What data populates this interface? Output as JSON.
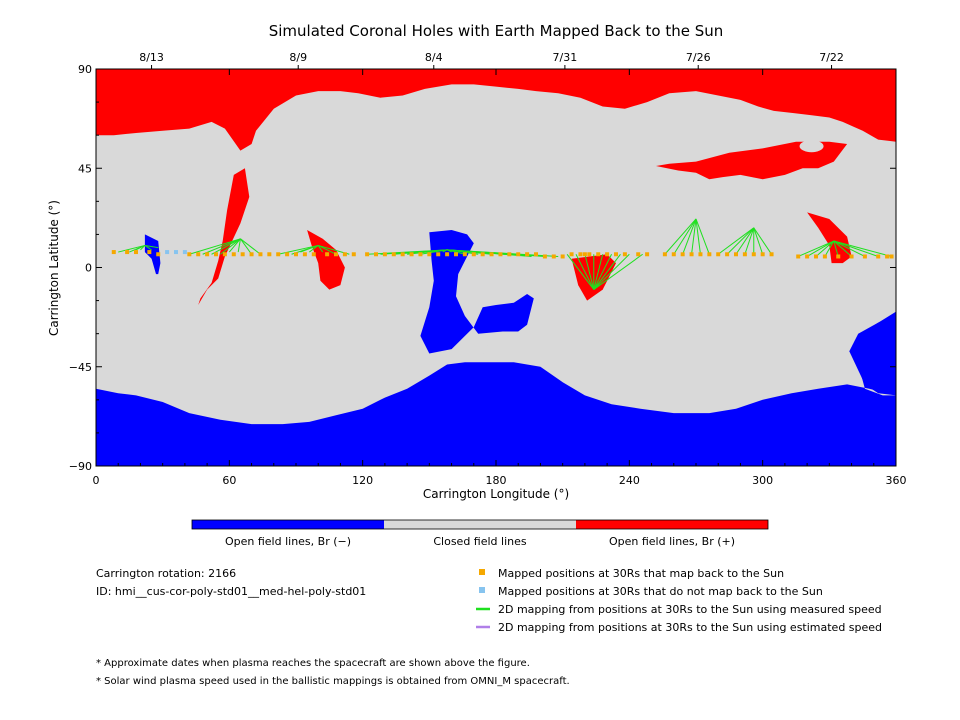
{
  "colors": {
    "open_negative": "#0000ff",
    "closed": "#d9d9d9",
    "open_positive": "#ff0000",
    "mapped_back": "#f5a800",
    "not_mapped": "#87c4ef",
    "measured_line": "#1fe01f",
    "estimated_line": "#b07fe8"
  },
  "chart_data": {
    "type": "heatmap",
    "title": "Simulated Coronal Holes with Earth Mapped Back to the Sun",
    "xlabel": "Carrington Longitude (°)",
    "ylabel": "Carrington Latitude (°)",
    "xlim": [
      0,
      360
    ],
    "ylim": [
      -90,
      90
    ],
    "x_ticks": [
      0,
      60,
      120,
      180,
      240,
      300,
      360
    ],
    "y_ticks": [
      -90,
      -45,
      0,
      45,
      90
    ],
    "top_axis_ticks": [
      {
        "label": "8/13",
        "lon": 25
      },
      {
        "label": "8/9",
        "lon": 91
      },
      {
        "label": "8/4",
        "lon": 152
      },
      {
        "label": "7/31",
        "lon": 211
      },
      {
        "label": "7/26",
        "lon": 271
      },
      {
        "label": "7/22",
        "lon": 331
      }
    ],
    "colorbar": [
      {
        "label": "Open field lines, Br (−)",
        "color": "#0000ff"
      },
      {
        "label": "Closed field lines",
        "color": "#d9d9d9"
      },
      {
        "label": "Open field lines, Br (+)",
        "color": "#ff0000"
      }
    ],
    "regions": {
      "north_positive_cap": [
        [
          0,
          90
        ],
        [
          360,
          90
        ],
        [
          360,
          57
        ],
        [
          352,
          58
        ],
        [
          345,
          62
        ],
        [
          336,
          66
        ],
        [
          330,
          68
        ],
        [
          322,
          69
        ],
        [
          314,
          70
        ],
        [
          305,
          71
        ],
        [
          298,
          73
        ],
        [
          290,
          76
        ],
        [
          280,
          78
        ],
        [
          270,
          80
        ],
        [
          258,
          79
        ],
        [
          248,
          75
        ],
        [
          238,
          72
        ],
        [
          228,
          73
        ],
        [
          218,
          77
        ],
        [
          208,
          79
        ],
        [
          198,
          80
        ],
        [
          190,
          81
        ],
        [
          180,
          82
        ],
        [
          170,
          83
        ],
        [
          160,
          83
        ],
        [
          148,
          81
        ],
        [
          138,
          78
        ],
        [
          128,
          77
        ],
        [
          118,
          79
        ],
        [
          110,
          80
        ],
        [
          100,
          80
        ],
        [
          90,
          78
        ],
        [
          80,
          72
        ],
        [
          72,
          62
        ],
        [
          70,
          56
        ],
        [
          65,
          53
        ],
        [
          58,
          63
        ],
        [
          52,
          66
        ],
        [
          42,
          63
        ],
        [
          30,
          62
        ],
        [
          18,
          61
        ],
        [
          8,
          60
        ],
        [
          0,
          60
        ]
      ],
      "red_tongue_60": [
        [
          62,
          42
        ],
        [
          67,
          45
        ],
        [
          69,
          32
        ],
        [
          65,
          20
        ],
        [
          58,
          5
        ],
        [
          55,
          -5
        ],
        [
          50,
          -10
        ],
        [
          46,
          -17
        ],
        [
          47,
          -14
        ],
        [
          52,
          -7
        ],
        [
          55,
          3
        ],
        [
          57,
          12
        ],
        [
          59,
          26
        ]
      ],
      "red_ne_lobe": [
        [
          252,
          46
        ],
        [
          262,
          44
        ],
        [
          270,
          43
        ],
        [
          276,
          40
        ],
        [
          282,
          41
        ],
        [
          290,
          42
        ],
        [
          300,
          40
        ],
        [
          310,
          42
        ],
        [
          318,
          45
        ],
        [
          325,
          45
        ],
        [
          332,
          48
        ],
        [
          338,
          56
        ],
        [
          330,
          57
        ],
        [
          315,
          57
        ],
        [
          300,
          54
        ],
        [
          285,
          52
        ],
        [
          270,
          48
        ],
        [
          258,
          47
        ]
      ],
      "red_blob_100": [
        [
          95,
          17
        ],
        [
          102,
          13
        ],
        [
          108,
          8
        ],
        [
          112,
          0
        ],
        [
          110,
          -8
        ],
        [
          105,
          -10
        ],
        [
          101,
          -6
        ],
        [
          100,
          2
        ],
        [
          97,
          10
        ]
      ],
      "red_blob_225": [
        [
          214,
          4
        ],
        [
          222,
          5
        ],
        [
          230,
          6
        ],
        [
          234,
          2
        ],
        [
          228,
          -10
        ],
        [
          221,
          -15
        ],
        [
          217,
          -8
        ]
      ],
      "red_blob_330": [
        [
          320,
          25
        ],
        [
          330,
          22
        ],
        [
          338,
          14
        ],
        [
          340,
          5
        ],
        [
          336,
          2
        ],
        [
          331,
          2
        ],
        [
          330,
          10
        ],
        [
          325,
          18
        ]
      ],
      "blue_small_25": [
        [
          22,
          15
        ],
        [
          28,
          12
        ],
        [
          29,
          2
        ],
        [
          28,
          -3
        ],
        [
          27,
          -3
        ],
        [
          25,
          4
        ],
        [
          22,
          7
        ]
      ],
      "blue_center_155": [
        [
          150,
          16
        ],
        [
          160,
          17
        ],
        [
          167,
          15
        ],
        [
          170,
          11
        ],
        [
          166,
          3
        ],
        [
          163,
          -3
        ],
        [
          162,
          -13
        ],
        [
          166,
          -22
        ],
        [
          172,
          -30
        ],
        [
          183,
          -29
        ],
        [
          190,
          -29
        ],
        [
          194,
          -26
        ],
        [
          197,
          -14
        ],
        [
          194,
          -12
        ],
        [
          188,
          -16
        ],
        [
          180,
          -17
        ],
        [
          174,
          -18
        ],
        [
          170,
          -27
        ],
        [
          160,
          -37
        ],
        [
          150,
          -39
        ],
        [
          146,
          -31
        ],
        [
          150,
          -18
        ],
        [
          152,
          -6
        ],
        [
          151,
          3
        ]
      ],
      "south_negative_cap": [
        [
          0,
          -90
        ],
        [
          360,
          -90
        ],
        [
          360,
          -58
        ],
        [
          354,
          -58
        ],
        [
          346,
          -55
        ],
        [
          342,
          -40
        ],
        [
          344,
          -30
        ],
        [
          360,
          -20
        ],
        [
          360,
          -90
        ],
        [
          360,
          -58
        ],
        [
          348,
          -55
        ],
        [
          338,
          -53
        ],
        [
          325,
          -55
        ],
        [
          313,
          -57
        ],
        [
          300,
          -60
        ],
        [
          288,
          -64
        ],
        [
          276,
          -66
        ],
        [
          260,
          -66
        ],
        [
          245,
          -64
        ],
        [
          232,
          -62
        ],
        [
          220,
          -58
        ],
        [
          210,
          -52
        ],
        [
          200,
          -45
        ],
        [
          188,
          -43
        ],
        [
          176,
          -43
        ],
        [
          166,
          -43
        ],
        [
          158,
          -44
        ],
        [
          150,
          -49
        ],
        [
          140,
          -55
        ],
        [
          130,
          -59
        ],
        [
          120,
          -64
        ],
        [
          108,
          -67
        ],
        [
          96,
          -70
        ],
        [
          84,
          -71
        ],
        [
          70,
          -71
        ],
        [
          56,
          -69
        ],
        [
          42,
          -66
        ],
        [
          30,
          -61
        ],
        [
          18,
          -58
        ],
        [
          10,
          -57
        ],
        [
          0,
          -55
        ]
      ],
      "south_tail_350": [
        [
          339,
          -38
        ],
        [
          343,
          -30
        ],
        [
          352,
          -25
        ],
        [
          360,
          -21
        ],
        [
          360,
          -58
        ],
        [
          352,
          -57
        ],
        [
          346,
          -53
        ]
      ]
    },
    "fan_lines": [
      {
        "focus": [
          22,
          10
        ],
        "from": [
          [
            10,
            7
          ],
          [
            15,
            7
          ],
          [
            18,
            8
          ],
          [
            20,
            8
          ],
          [
            25,
            8
          ],
          [
            28,
            9
          ]
        ]
      },
      {
        "focus": [
          65,
          13
        ],
        "from": [
          [
            42,
            6
          ],
          [
            48,
            6
          ],
          [
            52,
            6
          ],
          [
            56,
            6
          ],
          [
            60,
            7
          ],
          [
            64,
            7
          ],
          [
            70,
            6
          ],
          [
            74,
            6
          ]
        ]
      },
      {
        "focus": [
          100,
          10
        ],
        "from": [
          [
            82,
            6
          ],
          [
            88,
            6
          ],
          [
            92,
            7
          ],
          [
            96,
            7
          ],
          [
            102,
            7
          ],
          [
            108,
            6
          ],
          [
            114,
            6
          ]
        ]
      },
      {
        "focus": [
          158,
          8
        ],
        "from": [
          [
            122,
            6
          ],
          [
            128,
            6
          ],
          [
            134,
            6
          ],
          [
            140,
            6
          ],
          [
            146,
            6
          ],
          [
            150,
            7
          ],
          [
            156,
            7
          ],
          [
            160,
            7
          ],
          [
            166,
            6
          ],
          [
            172,
            6
          ],
          [
            178,
            6
          ],
          [
            184,
            6
          ],
          [
            190,
            6
          ],
          [
            196,
            5
          ],
          [
            202,
            5
          ],
          [
            208,
            5
          ]
        ]
      },
      {
        "focus": [
          224,
          -10
        ],
        "from": [
          [
            212,
            6
          ],
          [
            216,
            6
          ],
          [
            220,
            6
          ],
          [
            224,
            6
          ],
          [
            228,
            6
          ],
          [
            232,
            6
          ],
          [
            236,
            6
          ],
          [
            240,
            6
          ],
          [
            246,
            6
          ]
        ]
      },
      {
        "focus": [
          270,
          22
        ],
        "from": [
          [
            256,
            6
          ],
          [
            260,
            6
          ],
          [
            264,
            6
          ],
          [
            268,
            6
          ],
          [
            272,
            6
          ],
          [
            276,
            6
          ]
        ]
      },
      {
        "focus": [
          296,
          18
        ],
        "from": [
          [
            280,
            6
          ],
          [
            284,
            6
          ],
          [
            288,
            6
          ],
          [
            292,
            6
          ],
          [
            296,
            6
          ],
          [
            300,
            6
          ],
          [
            304,
            6
          ]
        ]
      },
      {
        "focus": [
          332,
          12
        ],
        "from": [
          [
            316,
            5
          ],
          [
            320,
            5
          ],
          [
            324,
            5
          ],
          [
            328,
            5
          ],
          [
            334,
            5
          ],
          [
            340,
            5
          ],
          [
            346,
            5
          ],
          [
            352,
            5
          ],
          [
            358,
            5
          ]
        ]
      }
    ],
    "mapped_points": [
      [
        8,
        7
      ],
      [
        14,
        7
      ],
      [
        18,
        7
      ],
      [
        24,
        7
      ],
      [
        28,
        6
      ],
      [
        42,
        6
      ],
      [
        46,
        6
      ],
      [
        50,
        6
      ],
      [
        54,
        6
      ],
      [
        58,
        6
      ],
      [
        62,
        6
      ],
      [
        66,
        6
      ],
      [
        70,
        6
      ],
      [
        74,
        6
      ],
      [
        78,
        6
      ],
      [
        82,
        6
      ],
      [
        86,
        6
      ],
      [
        90,
        6
      ],
      [
        94,
        6
      ],
      [
        98,
        6
      ],
      [
        104,
        6
      ],
      [
        108,
        6
      ],
      [
        112,
        6
      ],
      [
        116,
        6
      ],
      [
        122,
        6
      ],
      [
        126,
        6
      ],
      [
        130,
        6
      ],
      [
        134,
        6
      ],
      [
        138,
        6
      ],
      [
        142,
        6
      ],
      [
        146,
        6
      ],
      [
        150,
        6
      ],
      [
        154,
        6
      ],
      [
        158,
        6
      ],
      [
        162,
        6
      ],
      [
        166,
        6
      ],
      [
        170,
        6
      ],
      [
        174,
        6
      ],
      [
        178,
        6
      ],
      [
        182,
        6
      ],
      [
        186,
        6
      ],
      [
        190,
        6
      ],
      [
        194,
        6
      ],
      [
        198,
        6
      ],
      [
        202,
        5
      ],
      [
        206,
        5
      ],
      [
        210,
        5
      ],
      [
        214,
        6
      ],
      [
        218,
        6
      ],
      [
        220,
        6
      ],
      [
        222,
        6
      ],
      [
        226,
        6
      ],
      [
        230,
        6
      ],
      [
        234,
        6
      ],
      [
        238,
        6
      ],
      [
        244,
        6
      ],
      [
        248,
        6
      ],
      [
        256,
        6
      ],
      [
        260,
        6
      ],
      [
        264,
        6
      ],
      [
        268,
        6
      ],
      [
        272,
        6
      ],
      [
        276,
        6
      ],
      [
        280,
        6
      ],
      [
        284,
        6
      ],
      [
        288,
        6
      ],
      [
        292,
        6
      ],
      [
        296,
        6
      ],
      [
        300,
        6
      ],
      [
        304,
        6
      ],
      [
        316,
        5
      ],
      [
        320,
        5
      ],
      [
        324,
        5
      ],
      [
        328,
        5
      ],
      [
        334,
        5
      ],
      [
        340,
        5
      ],
      [
        346,
        5
      ],
      [
        352,
        5
      ],
      [
        356,
        5
      ],
      [
        358,
        5
      ]
    ],
    "unmapped_points": [
      [
        32,
        7
      ],
      [
        36,
        7
      ],
      [
        40,
        7
      ]
    ],
    "legend": [
      {
        "kind": "square",
        "label": "Mapped positions at 30Rs that map back to the Sun",
        "color": "#f5a800"
      },
      {
        "kind": "square",
        "label": "Mapped positions at 30Rs that do not map back to the Sun",
        "color": "#87c4ef"
      },
      {
        "kind": "line",
        "label": "2D mapping from positions at 30Rs to the Sun using measured speed",
        "color": "#1fe01f"
      },
      {
        "kind": "line",
        "label": "2D mapping from positions at 30Rs to the Sun using estimated speed",
        "color": "#b07fe8"
      }
    ]
  },
  "info": {
    "rotation": "Carrington rotation: 2166",
    "id": "ID: hmi__cus-cor-poly-std01__med-hel-poly-std01"
  },
  "notes": [
    "* Approximate dates when plasma reaches the spacecraft are shown above the figure.",
    "* Solar wind plasma speed used in the ballistic mappings is obtained from OMNI_M spacecraft."
  ]
}
